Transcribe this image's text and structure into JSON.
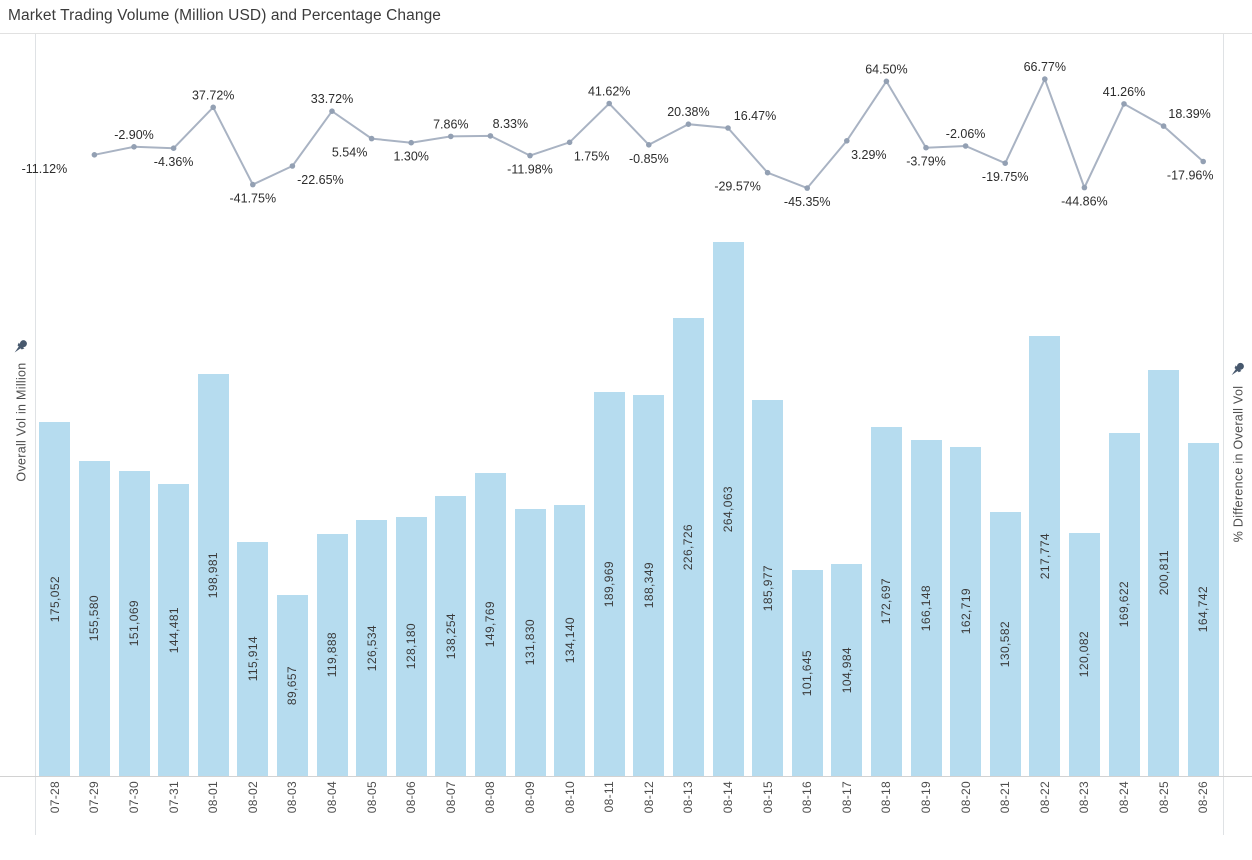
{
  "title": "Market Trading Volume (Million USD) and Percentage Change",
  "left_axis": {
    "label": "Overall Vol in Million"
  },
  "right_axis": {
    "label": "% Difference in Overall Vol"
  },
  "colors": {
    "bar_fill": "#b6dcef",
    "line": "#a9b3c3",
    "marker": "#93a0b3",
    "bar_label": "#3a3a3a",
    "line_label": "#2d2d2d",
    "tick_label": "#4d4d4d",
    "axis_label": "#4f4f4f",
    "title": "#3b3b3b",
    "axis_line": "#dfe2e5",
    "pin": "#47586d",
    "background": "#ffffff"
  },
  "chart_data": {
    "type": "combo",
    "title": "Market Trading Volume (Million USD) and Percentage Change",
    "categories": [
      "07-28",
      "07-29",
      "07-30",
      "07-31",
      "08-01",
      "08-02",
      "08-03",
      "08-04",
      "08-05",
      "08-06",
      "08-07",
      "08-08",
      "08-09",
      "08-10",
      "08-11",
      "08-12",
      "08-13",
      "08-14",
      "08-15",
      "08-16",
      "08-17",
      "08-18",
      "08-19",
      "08-20",
      "08-21",
      "08-22",
      "08-23",
      "08-24",
      "08-25",
      "08-26"
    ],
    "series": [
      {
        "name": "Overall Vol in Million",
        "type": "bar",
        "axis": "left",
        "values": [
          175052,
          155580,
          151069,
          144481,
          198981,
          115914,
          89657,
          119888,
          126534,
          128180,
          138254,
          149769,
          131830,
          134140,
          189969,
          188349,
          226726,
          264063,
          185977,
          101645,
          104984,
          172697,
          166148,
          162719,
          130582,
          217774,
          120082,
          169622,
          200811,
          164742
        ],
        "value_labels": [
          "175,052",
          "155,580",
          "151,069",
          "144,481",
          "198,981",
          "115,914",
          "89,657",
          "119,888",
          "126,534",
          "128,180",
          "138,254",
          "149,769",
          "131,830",
          "134,140",
          "189,969",
          "188,349",
          "226,726",
          "264,063",
          "185,977",
          "101,645",
          "104,984",
          "172,697",
          "166,148",
          "162,719",
          "130,582",
          "217,774",
          "120,082",
          "169,622",
          "200,811",
          "164,742"
        ]
      },
      {
        "name": "% Difference in Overall Vol",
        "type": "line",
        "axis": "right",
        "values": [
          null,
          -11.12,
          -2.9,
          -4.36,
          37.72,
          -41.75,
          -22.65,
          33.72,
          5.54,
          1.3,
          7.86,
          8.33,
          -11.98,
          1.75,
          41.62,
          -0.85,
          20.38,
          16.47,
          -29.57,
          -45.35,
          3.29,
          64.5,
          -3.79,
          -2.06,
          -19.75,
          66.77,
          -44.86,
          41.26,
          18.39,
          -17.96
        ],
        "value_labels": [
          null,
          "-11.12%",
          "-2.90%",
          "-4.36%",
          "37.72%",
          "-41.75%",
          "-22.65%",
          "33.72%",
          "5.54%",
          "1.30%",
          "7.86%",
          "8.33%",
          "-11.98%",
          "1.75%",
          "41.62%",
          "-0.85%",
          "20.38%",
          "16.47%",
          "-29.57%",
          "-45.35%",
          "3.29%",
          "64.50%",
          "-3.79%",
          "-2.06%",
          "-19.75%",
          "66.77%",
          "-44.86%",
          "41.26%",
          "18.39%",
          "-17.96%"
        ],
        "label_side": [
          null,
          "below",
          "above",
          "below",
          "above",
          "below",
          "below",
          "above",
          "below",
          "below",
          "above",
          "above",
          "below",
          "below",
          "above",
          "below",
          "above",
          "above",
          "below",
          "below",
          "below",
          "above",
          "below",
          "above",
          "below",
          "above",
          "below",
          "above",
          "above",
          "below"
        ],
        "label_dx": [
          null,
          -50,
          0,
          0,
          0,
          0,
          28,
          0,
          -22,
          0,
          0,
          20,
          0,
          22,
          0,
          0,
          0,
          27,
          -30,
          0,
          22,
          0,
          0,
          0,
          0,
          0,
          0,
          0,
          26,
          -13
        ]
      }
    ],
    "grid": false,
    "legend": "none",
    "x_tick_labels_rotated": true,
    "bar_value_labels_inside": true
  }
}
